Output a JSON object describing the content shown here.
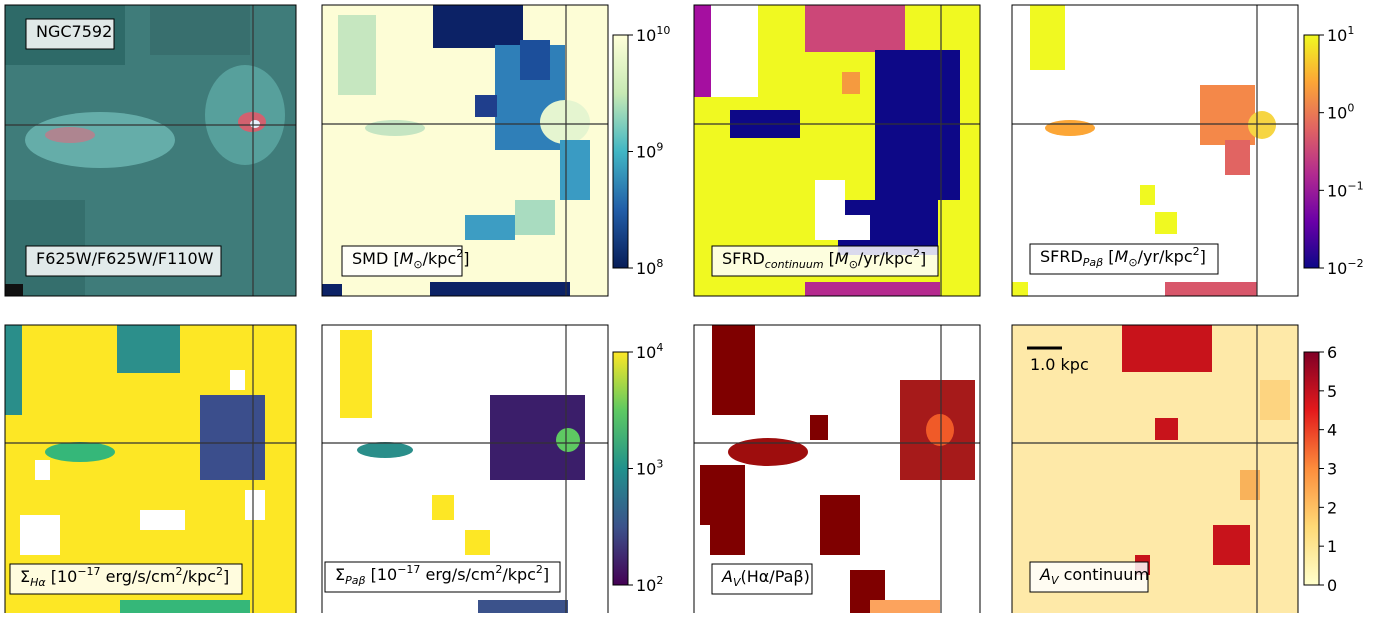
{
  "panels": [
    {
      "labels": [
        [
          {
            "text": "NGC7592"
          }
        ],
        [
          {
            "text": "F625W/F625W/F110W"
          }
        ]
      ]
    },
    {
      "labels": [
        [
          {
            "text": "SMD ["
          },
          {
            "text": "M",
            "style": "italic"
          },
          {
            "text": "⊙",
            "style": "sub"
          },
          {
            "text": "/kpc"
          },
          {
            "text": "2",
            "style": "sup"
          },
          {
            "text": "]"
          }
        ]
      ],
      "colorbar": {
        "scale": "log",
        "lim": [
          100000000,
          10000000000
        ],
        "colors": [
          "#ffffd9",
          "#c7e9b4",
          "#41b6c4",
          "#225ea8",
          "#081d58"
        ],
        "ticks": [
          {
            "value": 10000000000,
            "base": "10",
            "exponent": "10"
          },
          {
            "value": 1000000000,
            "base": "10",
            "exponent": "9"
          },
          {
            "value": 100000000,
            "base": "10",
            "exponent": "8"
          }
        ]
      }
    },
    {
      "labels": [
        [
          {
            "text": "SFRD"
          },
          {
            "text": "continuum",
            "style": "sub-italic"
          },
          {
            "text": " ["
          },
          {
            "text": "M",
            "style": "italic"
          },
          {
            "text": "⊙",
            "style": "sub"
          },
          {
            "text": "/yr/kpc"
          },
          {
            "text": "2",
            "style": "sup"
          },
          {
            "text": "]"
          }
        ]
      ]
    },
    {
      "labels": [
        [
          {
            "text": "SFRD"
          },
          {
            "text": "Paβ",
            "style": "sub-italic"
          },
          {
            "text": " ["
          },
          {
            "text": "M",
            "style": "italic"
          },
          {
            "text": "⊙",
            "style": "sub"
          },
          {
            "text": "/yr/kpc"
          },
          {
            "text": "2",
            "style": "sup"
          },
          {
            "text": "]"
          }
        ]
      ],
      "colorbar": {
        "scale": "log",
        "lim": [
          0.01,
          10
        ],
        "colors": [
          "#f0f921",
          "#fca636",
          "#e16462",
          "#b12a90",
          "#6a00a8",
          "#0d0887"
        ],
        "ticks": [
          {
            "value": 10,
            "base": "10",
            "exponent": "1"
          },
          {
            "value": 1,
            "base": "10",
            "exponent": "0"
          },
          {
            "value": 0.1,
            "base": "10",
            "exponent": "−1"
          },
          {
            "value": 0.01,
            "base": "10",
            "exponent": "−2"
          }
        ]
      }
    },
    {
      "labels": [
        [
          {
            "text": "Σ"
          },
          {
            "text": "Hα",
            "style": "sub-italic"
          },
          {
            "text": " [10"
          },
          {
            "text": "−17",
            "style": "sup"
          },
          {
            "text": " erg/s/cm"
          },
          {
            "text": "2",
            "style": "sup"
          },
          {
            "text": "/kpc"
          },
          {
            "text": "2",
            "style": "sup"
          },
          {
            "text": "]"
          }
        ]
      ]
    },
    {
      "labels": [
        [
          {
            "text": "Σ"
          },
          {
            "text": "Paβ",
            "style": "sub-italic"
          },
          {
            "text": " [10"
          },
          {
            "text": "−17",
            "style": "sup"
          },
          {
            "text": " erg/s/cm"
          },
          {
            "text": "2",
            "style": "sup"
          },
          {
            "text": "/kpc"
          },
          {
            "text": "2",
            "style": "sup"
          },
          {
            "text": "]"
          }
        ]
      ],
      "colorbar": {
        "scale": "log",
        "lim": [
          100,
          10000
        ],
        "colors": [
          "#fde725",
          "#5ec962",
          "#21918c",
          "#3b528b",
          "#440154"
        ],
        "ticks": [
          {
            "value": 10000,
            "base": "10",
            "exponent": "4"
          },
          {
            "value": 1000,
            "base": "10",
            "exponent": "3"
          },
          {
            "value": 100,
            "base": "10",
            "exponent": "2"
          }
        ]
      }
    },
    {
      "labels": [
        [
          {
            "text": "A",
            "style": "italic"
          },
          {
            "text": "V",
            "style": "sub-italic"
          },
          {
            "text": "(Hα/Paβ)"
          }
        ]
      ]
    },
    {
      "labels": [
        [
          {
            "text": "1.0 kpc"
          }
        ],
        [
          {
            "text": "A",
            "style": "italic"
          },
          {
            "text": "V",
            "style": "sub-italic"
          },
          {
            "text": " continuum"
          }
        ]
      ],
      "colorbar": {
        "scale": "linear",
        "lim": [
          0,
          6
        ],
        "colors": [
          "#800026",
          "#e31a1c",
          "#fd8d3c",
          "#fed976",
          "#ffffcc"
        ],
        "ticks": [
          0,
          1,
          2,
          3,
          4,
          5,
          6
        ]
      }
    }
  ]
}
